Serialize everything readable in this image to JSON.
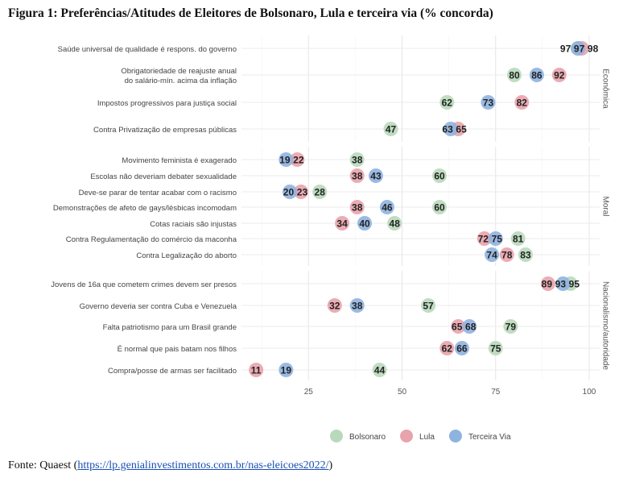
{
  "title": "Figura 1: Preferências/Atitudes de Eleitores de Bolsonaro, Lula e terceira via (% concorda)",
  "source": {
    "prefix": "Fonte: Quaest (",
    "link": "https://lp.genialinvestimentos.com.br/nas-eleicoes2022/",
    "suffix": ")"
  },
  "chart_data": {
    "type": "scatter",
    "xlim": [
      8,
      101
    ],
    "xticks": [
      "25",
      "50",
      "75",
      "100"
    ],
    "grid": true,
    "legend_position": "bottom",
    "colors": {
      "Bolsonaro": "#b9d9bb",
      "Lula": "#e9a3ac",
      "Terceira Via": "#8fb3e0"
    },
    "series_names": [
      "Bolsonaro",
      "Lula",
      "Terceira Via"
    ],
    "panels": [
      {
        "label": "Econômica",
        "rows": [
          {
            "label": "Saúde universal de qualidade é respons. do governo",
            "Bolsonaro": 97,
            "Lula": 98,
            "Terceira Via": 97
          },
          {
            "label": "Obrigatoriedade de reajuste anual\ndo salário-mín. acima da inflação",
            "Bolsonaro": 80,
            "Lula": 92,
            "Terceira Via": 86
          },
          {
            "label": "Impostos progressivos para justiça social",
            "Bolsonaro": 62,
            "Lula": 82,
            "Terceira Via": 73
          },
          {
            "label": "Contra Privatização de empresas públicas",
            "Bolsonaro": 47,
            "Lula": 65,
            "Terceira Via": 63
          }
        ]
      },
      {
        "label": "Moral",
        "rows": [
          {
            "label": "Movimento feminista é exagerado",
            "Bolsonaro": 38,
            "Lula": 22,
            "Terceira Via": 19
          },
          {
            "label": "Escolas não deveriam debater sexualidade",
            "Bolsonaro": 60,
            "Lula": 38,
            "Terceira Via": 43
          },
          {
            "label": "Deve-se parar de tentar acabar com o racismo",
            "Bolsonaro": 28,
            "Lula": 23,
            "Terceira Via": 20
          },
          {
            "label": "Demonstrações de afeto de gays/lésbicas incomodam",
            "Bolsonaro": 60,
            "Lula": 38,
            "Terceira Via": 46
          },
          {
            "label": "Cotas raciais são injustas",
            "Bolsonaro": 48,
            "Lula": 34,
            "Terceira Via": 40
          },
          {
            "label": "Contra Regulamentação do comércio da maconha",
            "Bolsonaro": 81,
            "Lula": 72,
            "Terceira Via": 75
          },
          {
            "label": "Contra Legalização do aborto",
            "Bolsonaro": 83,
            "Lula": 78,
            "Terceira Via": 74
          }
        ]
      },
      {
        "label": "Nacionalismo/autoridade",
        "rows": [
          {
            "label": "Jovens de 16a que cometem crimes devem ser presos",
            "Bolsonaro": 95,
            "Lula": 89,
            "Terceira Via": 93
          },
          {
            "label": "Governo deveria ser contra Cuba e Venezuela",
            "Bolsonaro": 57,
            "Lula": 32,
            "Terceira Via": 38
          },
          {
            "label": "Falta patriotismo para um Brasil grande",
            "Bolsonaro": 79,
            "Lula": 65,
            "Terceira Via": 68
          },
          {
            "label": "É normal que pais batam nos filhos",
            "Bolsonaro": 75,
            "Lula": 62,
            "Terceira Via": 66
          },
          {
            "label": "Compra/posse de armas ser facilitado",
            "Bolsonaro": 44,
            "Lula": 11,
            "Terceira Via": 19
          }
        ]
      }
    ]
  }
}
